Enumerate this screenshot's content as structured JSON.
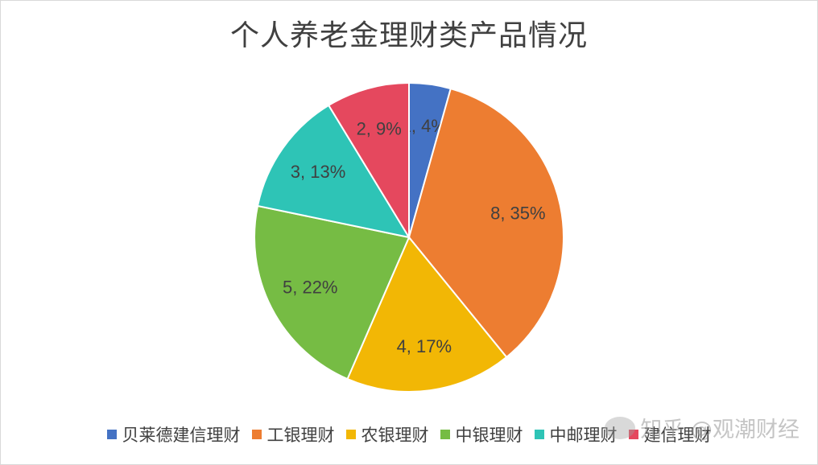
{
  "chart_data": {
    "type": "pie",
    "title": "个人养老金理财类产品情况",
    "slices": [
      {
        "name": "贝莱德建信理财",
        "value": 1,
        "percent": "4%",
        "color": "#4472C4"
      },
      {
        "name": "工银理财",
        "value": 8,
        "percent": "35%",
        "color": "#ED7D31"
      },
      {
        "name": "农银理财",
        "value": 4,
        "percent": "17%",
        "color": "#F2B705"
      },
      {
        "name": "中银理财",
        "value": 5,
        "percent": "22%",
        "color": "#76BC44"
      },
      {
        "name": "中邮理财",
        "value": 3,
        "percent": "13%",
        "color": "#2EC4B6"
      },
      {
        "name": "建信理财",
        "value": 2,
        "percent": "9%",
        "color": "#E5485E"
      }
    ],
    "legend_position": "bottom"
  },
  "watermark": {
    "text": "知乎 @观潮财经"
  }
}
